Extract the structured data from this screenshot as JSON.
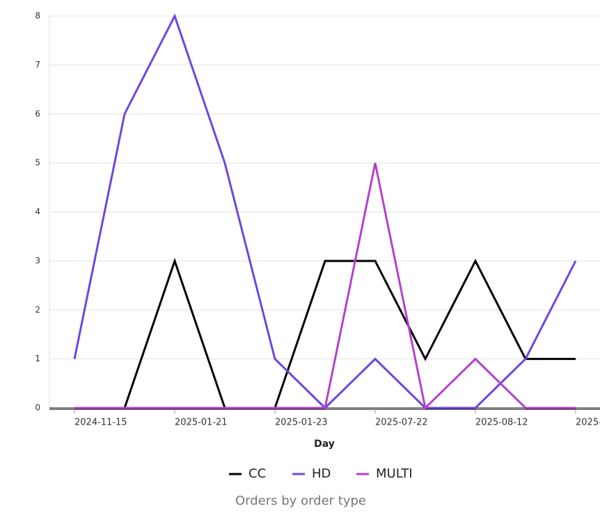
{
  "chart_data": {
    "type": "line",
    "title": "Orders by order type",
    "x_label": "Day",
    "categories": [
      "2024-11-15",
      null,
      "2025-01-21",
      null,
      "2025-01-23",
      null,
      "2025-07-22",
      null,
      "2025-08-12",
      null,
      "2025-"
    ],
    "series": [
      {
        "name": "CC",
        "color": "#000000",
        "values": [
          0,
          0,
          3,
          0,
          0,
          3,
          3,
          1,
          3,
          1,
          1
        ]
      },
      {
        "name": "HD",
        "color": "#6e45e2",
        "values": [
          1,
          6,
          8,
          5,
          1,
          0,
          1,
          0,
          0,
          1,
          3
        ]
      },
      {
        "name": "MULTI",
        "color": "#b540cc",
        "values": [
          0,
          0,
          0,
          0,
          0,
          0,
          5,
          0,
          1,
          0,
          0
        ]
      }
    ],
    "ylim": [
      0,
      8
    ],
    "yticks": [
      0,
      1,
      2,
      3,
      4,
      5,
      6,
      7,
      8
    ],
    "grid": true
  }
}
